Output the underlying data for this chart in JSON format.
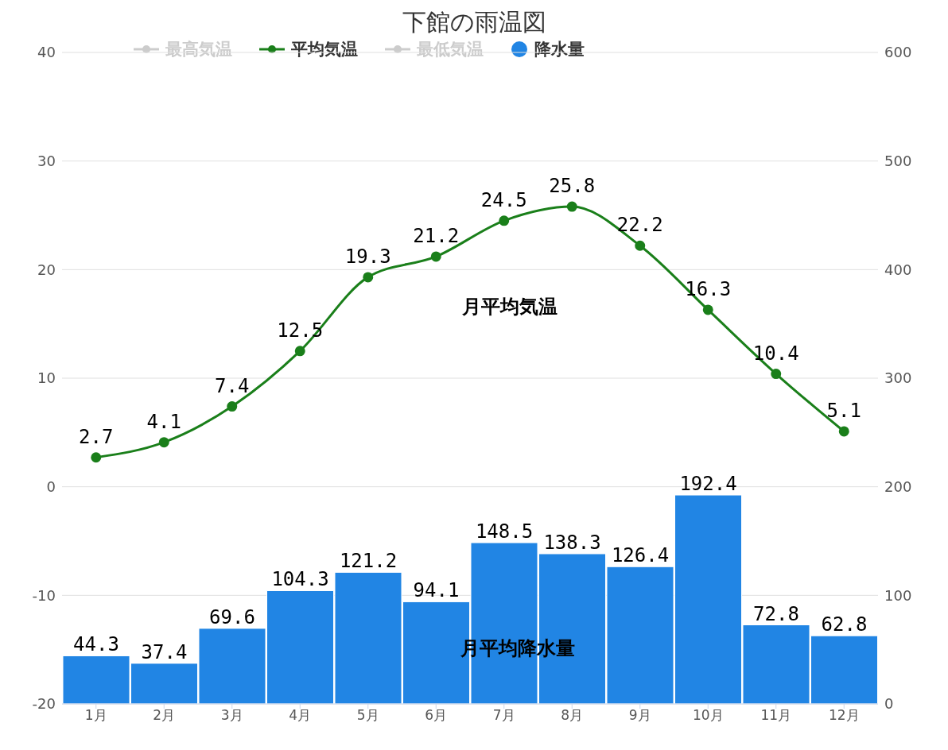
{
  "chart_data": {
    "type": "bar",
    "title": "下館の雨温図",
    "categories": [
      "1月",
      "2月",
      "3月",
      "4月",
      "5月",
      "6月",
      "7月",
      "8月",
      "9月",
      "10月",
      "11月",
      "12月"
    ],
    "series": [
      {
        "name": "最高気温",
        "type": "line",
        "color": "#cccccc",
        "values": [
          null,
          null,
          null,
          null,
          null,
          null,
          null,
          null,
          null,
          null,
          null,
          null
        ]
      },
      {
        "name": "平均気温",
        "type": "line",
        "color": "#1a7f1a",
        "values": [
          2.7,
          4.1,
          7.4,
          12.5,
          19.3,
          21.2,
          24.5,
          25.8,
          22.2,
          16.3,
          10.4,
          5.1
        ]
      },
      {
        "name": "最低気温",
        "type": "line",
        "color": "#cccccc",
        "values": [
          null,
          null,
          null,
          null,
          null,
          null,
          null,
          null,
          null,
          null,
          null,
          null
        ]
      },
      {
        "name": "降水量",
        "axis": "y2",
        "color": "#2185e4",
        "values": [
          44.3,
          37.4,
          69.6,
          104.3,
          121.2,
          94.1,
          148.5,
          138.3,
          126.4,
          192.4,
          72.8,
          62.8
        ]
      }
    ],
    "ylim": [
      -20,
      40
    ],
    "yticks": [
      -20,
      -10,
      0,
      10,
      20,
      30,
      40
    ],
    "y2lim": [
      0,
      600
    ],
    "y2ticks": [
      0,
      100,
      200,
      300,
      400,
      500,
      600
    ],
    "grid": "y",
    "legend": "top",
    "marker": "circle",
    "line_style": "solid",
    "data_labels": true,
    "annotations": [
      "月平均気温",
      "月平均降水量"
    ]
  }
}
